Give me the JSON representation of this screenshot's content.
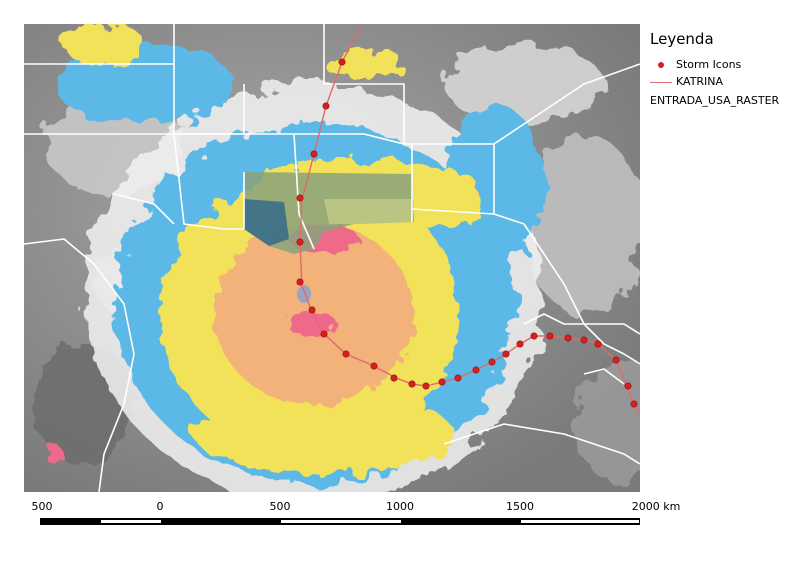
{
  "legend": {
    "title": "Leyenda",
    "items": [
      {
        "label": "Storm Icons",
        "symbol": "red-point",
        "color": "#d42020"
      },
      {
        "label": "KATRINA",
        "symbol": "red-line",
        "color": "#e06a6a"
      }
    ],
    "raster_label": "ENTRADA_USA_RASTER"
  },
  "scale_bar": {
    "ticks": [
      "500",
      "0",
      "500",
      "1000",
      "1500",
      "2000 km"
    ],
    "unit": "km"
  },
  "map": {
    "colors": {
      "cloud_gray": "#8a8a8a",
      "cloud_white": "#f2f2f2",
      "blue": "#5cb8e6",
      "yellow": "#f2e25a",
      "orange": "#f2b27a",
      "pink": "#ef6a8a",
      "border": "#ffffff"
    }
  }
}
